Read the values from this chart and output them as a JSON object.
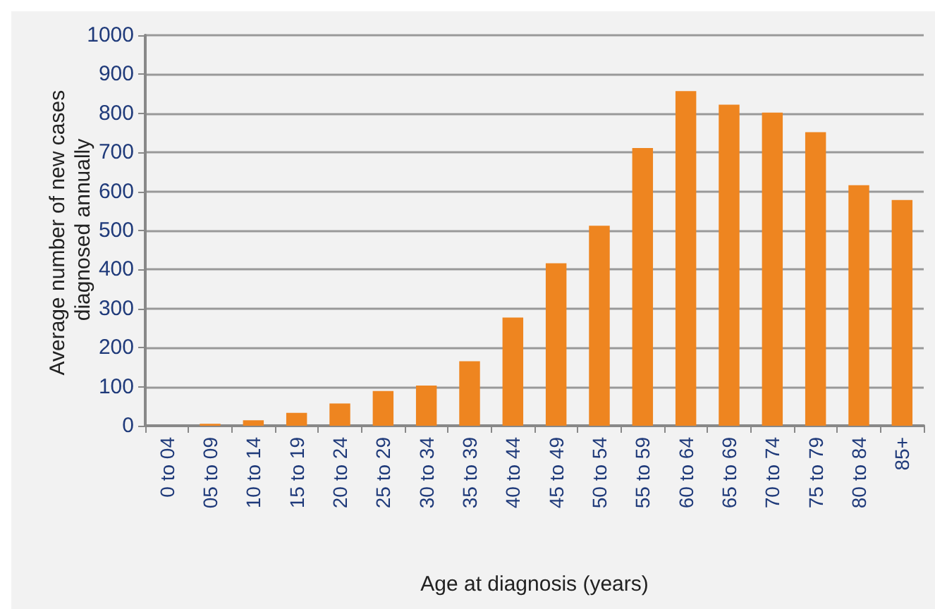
{
  "chart_data": {
    "type": "bar",
    "xlabel": "Age at diagnosis (years)",
    "ylabel": "Average number of new cases diagnosed annually",
    "categories": [
      "0 to 04",
      "05 to 09",
      "10 to 14",
      "15 to 19",
      "20 to 24",
      "25 to 29",
      "30 to 34",
      "35 to 39",
      "40 to 44",
      "45 to 49",
      "50 to 54",
      "55 to 59",
      "60 to 64",
      "65 to 69",
      "70 to 74",
      "75 to 79",
      "80 to 84",
      "85+"
    ],
    "values": [
      0,
      5,
      14,
      33,
      57,
      89,
      103,
      165,
      277,
      416,
      512,
      711,
      857,
      822,
      802,
      752,
      616,
      578
    ],
    "color": "#ee8520",
    "ylim": [
      0,
      1000
    ],
    "yticks": [
      0,
      100,
      200,
      300,
      400,
      500,
      600,
      700,
      800,
      900,
      1000
    ],
    "grid": "y"
  }
}
